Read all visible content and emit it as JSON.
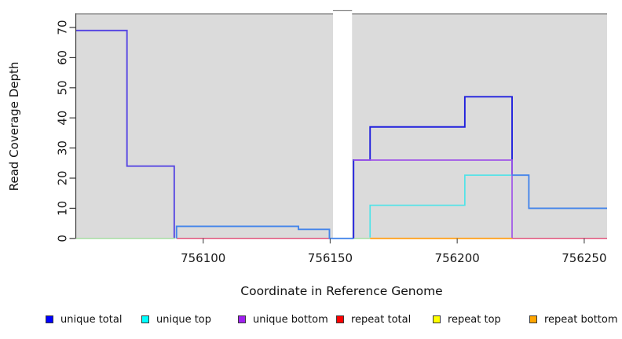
{
  "chart_data": {
    "type": "line",
    "subtype": "step-coverage-plot",
    "title": "",
    "xlabel": "Coordinate in Reference Genome",
    "ylabel": "Read Coverage Depth",
    "xlim": [
      756050,
      756259
    ],
    "ylim": [
      0,
      74.7
    ],
    "grid": false,
    "plot_bg": "#dbdbdb",
    "border_color": "#8c8c8c",
    "axis_color": "#3a3a3a",
    "tick_label_color": "#1a1a1a",
    "x_ticks": [
      756100,
      756150,
      756200,
      756250
    ],
    "y_ticks": [
      0,
      10,
      20,
      30,
      40,
      50,
      60,
      70
    ],
    "gap_region": {
      "from": 756151.1,
      "to": 756158.6,
      "note": "white vertical band, no data"
    },
    "legend": [
      {
        "label": "unique total",
        "color": "#0000FF"
      },
      {
        "label": "unique top",
        "color": "#00FFFF"
      },
      {
        "label": "unique bottom",
        "color": "#A020F0"
      },
      {
        "label": "repeat total",
        "color": "#FF0000"
      },
      {
        "label": "repeat top",
        "color": "#FFFF00"
      },
      {
        "label": "repeat bottom",
        "color": "#FFA500"
      }
    ],
    "series": [
      {
        "name": "unique total",
        "color": "#0000FF",
        "steps": [
          [
            756050,
            69
          ],
          [
            756070,
            24
          ],
          [
            756089,
            4
          ],
          [
            756137,
            3
          ],
          [
            756150,
            0
          ],
          [
            756159,
            26
          ],
          [
            756166,
            37
          ],
          [
            756203,
            47
          ],
          [
            756222,
            21
          ],
          [
            756228,
            10
          ],
          [
            756259,
            10
          ]
        ]
      },
      {
        "name": "unique top",
        "color": "#00FFFF",
        "steps": [
          [
            756050,
            0
          ],
          [
            756089,
            4
          ],
          [
            756137,
            3
          ],
          [
            756150,
            0
          ],
          [
            756166,
            11
          ],
          [
            756203,
            21
          ],
          [
            756228,
            10
          ],
          [
            756259,
            10
          ]
        ]
      },
      {
        "name": "unique bottom",
        "color": "#A020F0",
        "steps": [
          [
            756050,
            69
          ],
          [
            756070,
            24
          ],
          [
            756089,
            0
          ],
          [
            756159,
            26
          ],
          [
            756222,
            0
          ],
          [
            756259,
            0
          ]
        ]
      },
      {
        "name": "repeat total",
        "color": "#FF0000",
        "steps": [
          [
            756050,
            0
          ],
          [
            756259,
            0
          ]
        ]
      },
      {
        "name": "repeat top",
        "color": "#FFFF00",
        "steps": [
          [
            756050,
            0
          ],
          [
            756259,
            0
          ]
        ]
      },
      {
        "name": "repeat bottom",
        "color": "#FFA500",
        "steps": [
          [
            756050,
            0
          ],
          [
            756259,
            0
          ]
        ]
      }
    ],
    "visible_lines": [
      {
        "name": "baseline-green-left",
        "color": "#A3D9A0",
        "width": 1.5,
        "points": [
          [
            756050,
            0
          ],
          [
            756089,
            0
          ]
        ]
      },
      {
        "name": "baseline-crimson-left",
        "color": "#DC5078",
        "width": 1.5,
        "points": [
          [
            756089.5,
            0
          ],
          [
            756149.7,
            0
          ]
        ]
      },
      {
        "name": "baseline-green-right",
        "color": "#A3D9A0",
        "width": 1.5,
        "points": [
          [
            756159.2,
            0
          ],
          [
            756165.7,
            0
          ]
        ]
      },
      {
        "name": "baseline-orange",
        "color": "#FFA01E",
        "width": 1.8,
        "points": [
          [
            756165.7,
            0
          ],
          [
            756221.6,
            0
          ]
        ]
      },
      {
        "name": "baseline-crimson-right",
        "color": "#DC5078",
        "width": 1.5,
        "points": [
          [
            756221.6,
            0
          ],
          [
            756259,
            0
          ]
        ]
      },
      {
        "name": "unique-bottom-over-total-left",
        "color": "#5848E2",
        "width": 1.9,
        "points": [
          [
            756050,
            69
          ],
          [
            756070,
            69
          ],
          [
            756070,
            24
          ],
          [
            756088.6,
            24
          ],
          [
            756088.6,
            0.2
          ]
        ]
      },
      {
        "name": "unique-top-over-total-left",
        "color": "#4585EA",
        "width": 1.9,
        "points": [
          [
            756089.5,
            0
          ],
          [
            756089.5,
            4
          ],
          [
            756137.5,
            4
          ],
          [
            756137.5,
            3
          ],
          [
            756149.7,
            3
          ],
          [
            756149.7,
            0
          ],
          [
            756159.2,
            0
          ]
        ]
      },
      {
        "name": "unique-total-right",
        "color": "#2020DD",
        "width": 1.9,
        "points": [
          [
            756159.2,
            0
          ],
          [
            756159.2,
            26
          ],
          [
            756165.7,
            26
          ],
          [
            756165.7,
            37
          ],
          [
            756203,
            37
          ],
          [
            756203,
            47
          ],
          [
            756221.6,
            47
          ],
          [
            756221.6,
            21
          ]
        ]
      },
      {
        "name": "unique-top-right",
        "color": "#4FE3E8",
        "width": 1.7,
        "points": [
          [
            756165.7,
            0.3
          ],
          [
            756165.7,
            11
          ],
          [
            756203,
            11
          ],
          [
            756203,
            21
          ],
          [
            756221.6,
            21
          ]
        ]
      },
      {
        "name": "unique-bottom-right",
        "color": "#A055E8",
        "width": 1.7,
        "points": [
          [
            756159.2,
            26
          ],
          [
            756221.6,
            26
          ],
          [
            756221.6,
            0.2
          ]
        ]
      },
      {
        "name": "unique-top-over-total-tail",
        "color": "#4585EA",
        "width": 1.9,
        "points": [
          [
            756221.6,
            21
          ],
          [
            756228.2,
            21
          ],
          [
            756228.2,
            10
          ],
          [
            756259,
            10
          ]
        ]
      }
    ]
  }
}
